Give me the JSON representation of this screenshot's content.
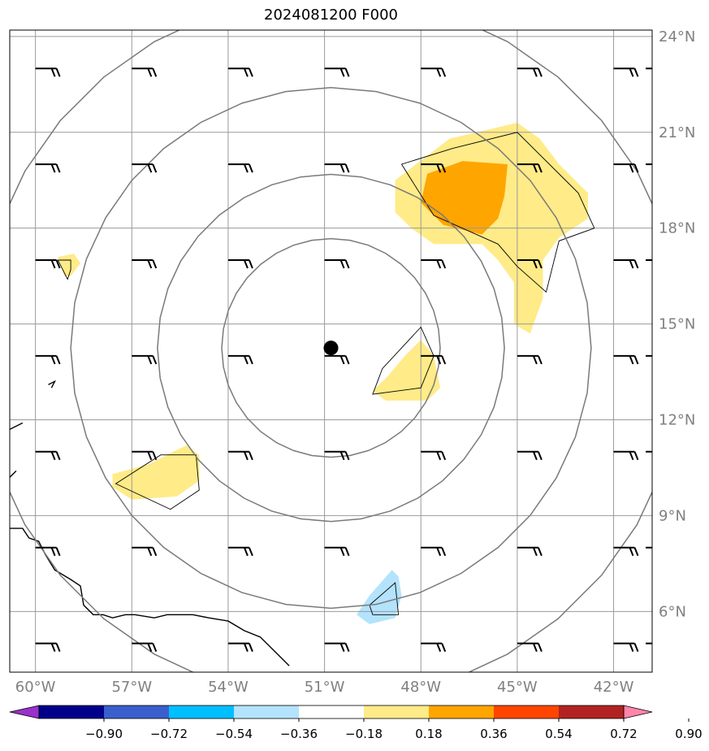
{
  "title": "2024081200 F000",
  "map": {
    "lon_range": [
      -60.8,
      -40.8
    ],
    "lat_range": [
      4.1,
      24.2
    ],
    "lon_ticks": [
      {
        "value": -60,
        "label": "60°W"
      },
      {
        "value": -57,
        "label": "57°W"
      },
      {
        "value": -54,
        "label": "54°W"
      },
      {
        "value": -51,
        "label": "51°W"
      },
      {
        "value": -48,
        "label": "48°W"
      },
      {
        "value": -45,
        "label": "45°W"
      },
      {
        "value": -42,
        "label": "42°W"
      }
    ],
    "lat_ticks": [
      {
        "value": 24,
        "label": "24°N"
      },
      {
        "value": 21,
        "label": "21°N"
      },
      {
        "value": 18,
        "label": "18°N"
      },
      {
        "value": 15,
        "label": "15°N"
      },
      {
        "value": 12,
        "label": "12°N"
      },
      {
        "value": 9,
        "label": "9°N"
      },
      {
        "value": 6,
        "label": "6°N"
      }
    ],
    "center": {
      "lon": -50.8,
      "lat": 14.25
    },
    "range_ring_radii_deg": [
      3.4,
      5.4,
      8.1,
      11.0
    ],
    "wind_barb_lons": [
      -60,
      -57,
      -54,
      -51,
      -48,
      -45,
      -42,
      -41
    ],
    "wind_barb_lats": [
      23,
      20,
      17,
      14,
      11,
      8,
      5
    ],
    "anomaly_areas": [
      {
        "level": 0.36,
        "color": "#FFEB88",
        "points": [
          [
            -47.1,
            20.8
          ],
          [
            -45,
            21.3
          ],
          [
            -44.3,
            20.8
          ],
          [
            -43.7,
            20.0
          ],
          [
            -42.8,
            19.1
          ],
          [
            -42.8,
            18.3
          ],
          [
            -43.7,
            17.7
          ],
          [
            -44.2,
            17.0
          ],
          [
            -44.2,
            15.8
          ],
          [
            -44.6,
            14.7
          ],
          [
            -45.1,
            15.0
          ],
          [
            -45.1,
            16.3
          ],
          [
            -45.6,
            17.0
          ],
          [
            -46.1,
            17.5
          ],
          [
            -47.6,
            17.5
          ],
          [
            -48.3,
            18.0
          ],
          [
            -48.8,
            18.5
          ],
          [
            -48.8,
            19.5
          ]
        ]
      },
      {
        "level": 0.54,
        "color": "#FFA500",
        "points": [
          [
            -46.7,
            20.1
          ],
          [
            -45.3,
            20.0
          ],
          [
            -45.4,
            19.0
          ],
          [
            -45.6,
            18.3
          ],
          [
            -46.1,
            17.8
          ],
          [
            -47.3,
            18.1
          ],
          [
            -48.0,
            18.8
          ],
          [
            -47.8,
            19.7
          ]
        ]
      },
      {
        "level": 0.36,
        "color": "#FFEB88",
        "points": [
          [
            -48.0,
            14.5
          ],
          [
            -47.6,
            14.0
          ],
          [
            -47.4,
            13.0
          ],
          [
            -47.8,
            12.6
          ],
          [
            -49.1,
            12.6
          ],
          [
            -49.5,
            12.9
          ],
          [
            -49.0,
            13.4
          ],
          [
            -48.5,
            14.0
          ]
        ]
      },
      {
        "level": 0.36,
        "color": "#FFEB88",
        "points": [
          [
            -57.6,
            10.3
          ],
          [
            -56.5,
            10.6
          ],
          [
            -55.3,
            11.2
          ],
          [
            -54.9,
            10.9
          ],
          [
            -54.9,
            10.1
          ],
          [
            -55.6,
            9.6
          ],
          [
            -57.0,
            9.5
          ],
          [
            -57.6,
            9.9
          ]
        ]
      },
      {
        "level": 0.36,
        "color": "#FFEB88",
        "points": [
          [
            -59.3,
            17.1
          ],
          [
            -58.8,
            17.2
          ],
          [
            -58.6,
            16.9
          ],
          [
            -58.9,
            16.5
          ],
          [
            -59.1,
            16.5
          ]
        ]
      },
      {
        "level": -0.36,
        "color": "#B4E3FD",
        "points": [
          [
            -49.6,
            6.5
          ],
          [
            -48.9,
            7.3
          ],
          [
            -48.7,
            7.1
          ],
          [
            -48.6,
            6.5
          ],
          [
            -48.8,
            5.8
          ],
          [
            -49.6,
            5.6
          ],
          [
            -50.0,
            5.9
          ]
        ]
      }
    ],
    "outline_areas": [
      [
        [
          -47.0,
          20.5
        ],
        [
          -45.0,
          21.0
        ],
        [
          -43.1,
          19.1
        ],
        [
          -42.6,
          18.0
        ],
        [
          -43.7,
          17.6
        ],
        [
          -44.1,
          16.0
        ],
        [
          -45.0,
          16.8
        ],
        [
          -45.6,
          17.5
        ],
        [
          -47.6,
          18.4
        ],
        [
          -48.6,
          20.0
        ]
      ],
      [
        [
          -48.0,
          14.9
        ],
        [
          -47.6,
          14.0
        ],
        [
          -48.0,
          13.0
        ],
        [
          -49.5,
          12.8
        ],
        [
          -49.2,
          13.6
        ]
      ],
      [
        [
          -57.5,
          10.0
        ],
        [
          -56.1,
          10.9
        ],
        [
          -55.0,
          10.9
        ],
        [
          -54.9,
          9.8
        ],
        [
          -55.8,
          9.2
        ]
      ],
      [
        [
          -59.3,
          17.0
        ],
        [
          -58.9,
          17.0
        ],
        [
          -58.9,
          16.7
        ],
        [
          -59.0,
          16.4
        ]
      ],
      [
        [
          -49.6,
          6.2
        ],
        [
          -48.8,
          6.9
        ],
        [
          -48.7,
          5.9
        ],
        [
          -49.5,
          5.9
        ]
      ]
    ],
    "coastlines": [
      [
        [
          -60.8,
          8.6
        ],
        [
          -60.4,
          8.6
        ],
        [
          -60.2,
          8.3
        ],
        [
          -59.9,
          8.2
        ],
        [
          -59.7,
          7.8
        ],
        [
          -59.4,
          7.3
        ],
        [
          -58.9,
          7.0
        ],
        [
          -58.6,
          6.8
        ],
        [
          -58.5,
          6.2
        ],
        [
          -58.2,
          5.9
        ],
        [
          -57.9,
          5.9
        ],
        [
          -57.6,
          5.8
        ],
        [
          -57.2,
          5.9
        ],
        [
          -56.9,
          5.9
        ],
        [
          -56.3,
          5.8
        ],
        [
          -55.9,
          5.9
        ],
        [
          -55.5,
          5.9
        ],
        [
          -55.1,
          5.9
        ],
        [
          -54.6,
          5.8
        ],
        [
          -54.0,
          5.7
        ],
        [
          -53.5,
          5.4
        ],
        [
          -53.0,
          5.2
        ],
        [
          -52.5,
          4.7
        ],
        [
          -52.1,
          4.3
        ]
      ],
      [
        [
          -60.8,
          11.7
        ],
        [
          -60.4,
          11.9
        ]
      ],
      [
        [
          -60.8,
          10.2
        ],
        [
          -60.6,
          10.4
        ]
      ],
      [
        [
          -59.6,
          13.1
        ],
        [
          -59.4,
          13.2
        ],
        [
          -59.5,
          13.0
        ]
      ]
    ],
    "center_marker_radius_px": 9
  },
  "colorbar": {
    "levels": [
      "−0.90",
      "−0.72",
      "−0.54",
      "−0.36",
      "−0.18",
      "0.18",
      "0.36",
      "0.54",
      "0.72",
      "0.90"
    ],
    "colors": [
      "#9932CC",
      "#00008B",
      "#3A5FCD",
      "#00BFFF",
      "#B4E3FD",
      "#FFFFFF",
      "#FFEB88",
      "#FFA500",
      "#FF4500",
      "#B22222",
      "#FF85AA"
    ]
  }
}
